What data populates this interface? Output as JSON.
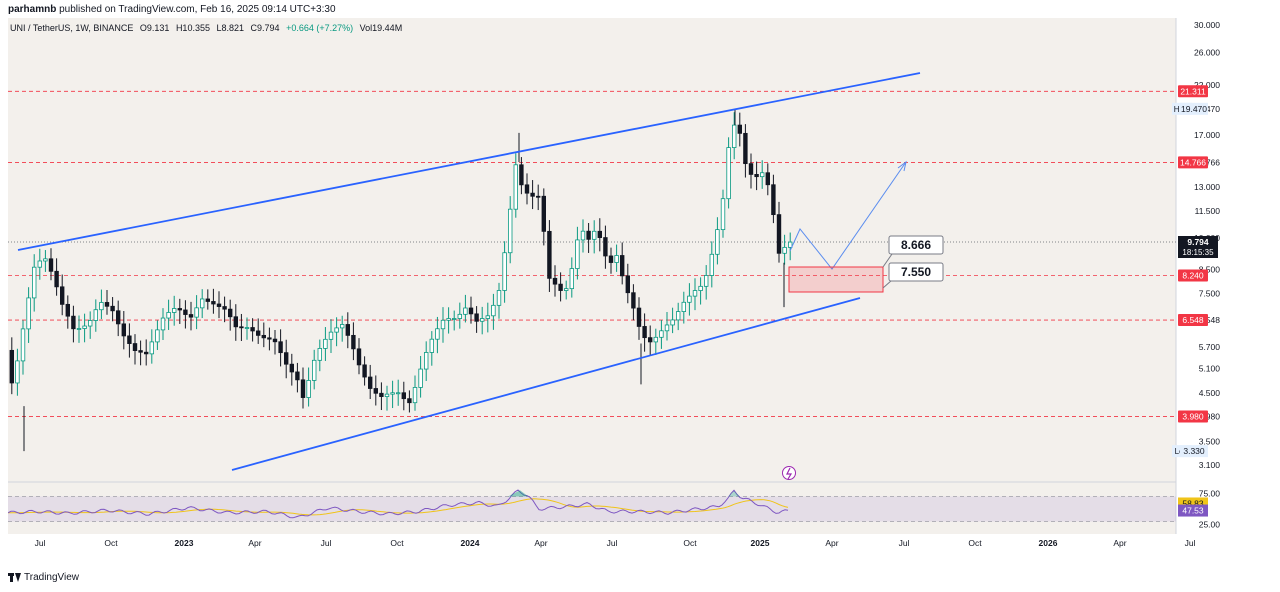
{
  "header": {
    "author": "parhamnb",
    "published_text": "published on TradingView.com, Feb 16, 2025 09:14 UTC+3:30"
  },
  "legend": {
    "symbol": "UNI / TetherUS, 1W, BINANCE",
    "open": "O9.131",
    "high": "H10.355",
    "low": "L8.821",
    "close": "C9.794",
    "change": "+0.664 (+7.27%)",
    "volume": "Vol19.44M"
  },
  "price_axis": {
    "ticks": [
      "30.000",
      "26.000",
      "22.000",
      "19.470",
      "17.000",
      "14.766",
      "13.000",
      "11.500",
      "10.000",
      "8.500",
      "7.500",
      "6.548",
      "5.700",
      "5.100",
      "4.500",
      "3.980",
      "3.500",
      "3.100"
    ]
  },
  "time_axis": {
    "labels": [
      "Jul",
      "Oct",
      "2023",
      "Apr",
      "Jul",
      "Oct",
      "2024",
      "Apr",
      "Jul",
      "Oct",
      "2025",
      "Apr",
      "Jul",
      "Oct",
      "2026",
      "Apr",
      "Jul"
    ]
  },
  "levels": [
    {
      "label": "21.311",
      "color": "#f23645"
    },
    {
      "label": "14.766",
      "color": "#f23645"
    },
    {
      "label": "8.240",
      "color": "#f23645"
    },
    {
      "label": "6.548",
      "color": "#f23645"
    },
    {
      "label": "3.980",
      "color": "#f23645"
    }
  ],
  "current_price": {
    "value": "9.794",
    "countdown": "18:15:35"
  },
  "high_marker": {
    "tag": "High",
    "value": "19.470"
  },
  "low_marker": {
    "tag": "Low",
    "value": "3.330"
  },
  "zone_labels": {
    "upper": "8.666",
    "lower": "7.550"
  },
  "rsi": {
    "ticks": [
      "75.00",
      "25.00"
    ],
    "values": [
      {
        "label": "58.83",
        "color": "#f0c419"
      },
      {
        "label": "47.53",
        "color": "#7e57c2"
      }
    ]
  },
  "footer": {
    "brand": "TradingView"
  },
  "colors": {
    "up": "#089981",
    "down": "#131722",
    "channel": "#2962ff",
    "level": "#f23645",
    "rsi_line": "#7e57c2",
    "rsi_ma": "#f0c419",
    "zone": "#f23645",
    "projection": "#5b8def"
  },
  "icons": {
    "lightning": "lightning-icon",
    "logo": "tradingview-logo-icon"
  }
}
